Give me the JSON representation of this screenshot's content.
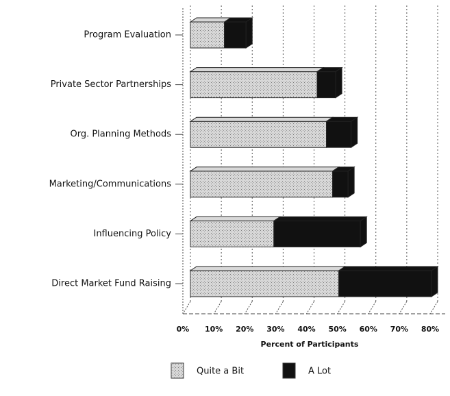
{
  "chart_data": {
    "type": "stacked-barh",
    "categories": [
      "Program Evaluation",
      "Private Sector Partnerships",
      "Org. Planning Methods",
      "Marketing/Communications",
      "Influencing Policy",
      "Direct Market Fund Raising"
    ],
    "series": [
      {
        "name": "Quite a Bit",
        "color": "#d8d8d8",
        "values": [
          11,
          41,
          44,
          46,
          27,
          48
        ]
      },
      {
        "name": "A Lot",
        "color": "#111111",
        "values": [
          7,
          6,
          8,
          5,
          28,
          30
        ]
      }
    ],
    "xlabel": "Percent of Participants",
    "xlim": [
      0,
      80
    ],
    "xticks": [
      {
        "value": 0,
        "label": "0%"
      },
      {
        "value": 10,
        "label": "10%"
      },
      {
        "value": 20,
        "label": "20%"
      },
      {
        "value": 30,
        "label": "30%"
      },
      {
        "value": 40,
        "label": "40%"
      },
      {
        "value": 50,
        "label": "50%"
      },
      {
        "value": 60,
        "label": "60%"
      },
      {
        "value": 70,
        "label": "70%"
      },
      {
        "value": 80,
        "label": "80%"
      }
    ],
    "grid": true,
    "legend": "bottom"
  }
}
